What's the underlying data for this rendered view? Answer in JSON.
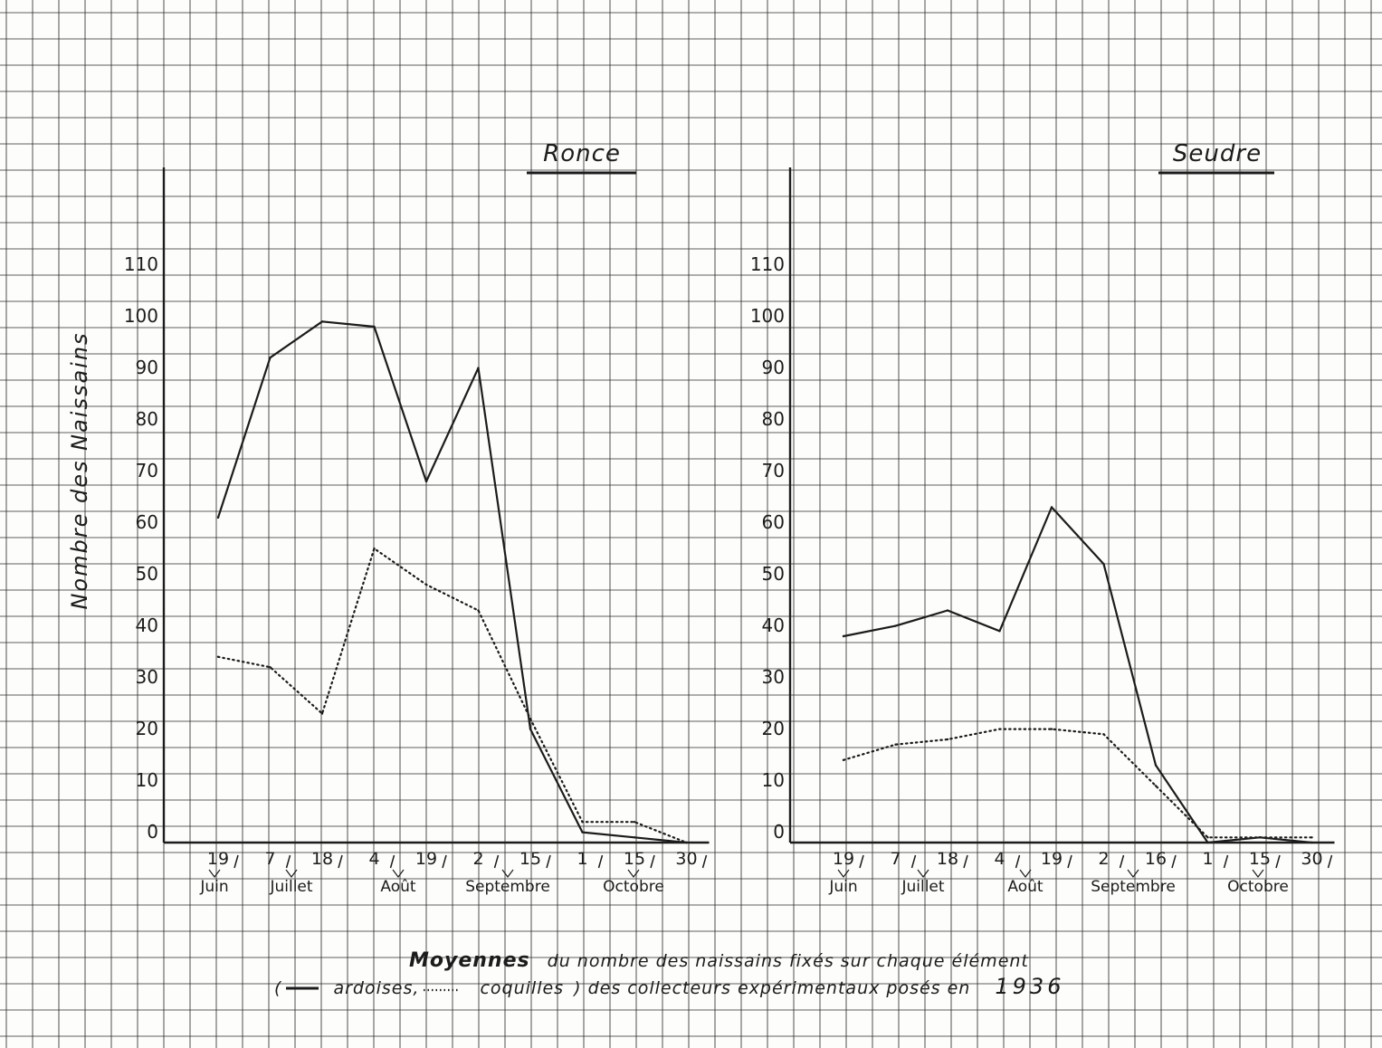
{
  "chart_data": [
    {
      "type": "line",
      "title": "Ronce",
      "ylabel": "Nombre des Naissains",
      "ylim": [
        0,
        110
      ],
      "yticks": [
        "0",
        "10",
        "20",
        "30",
        "40",
        "50",
        "60",
        "70",
        "80",
        "90",
        "100",
        "110"
      ],
      "x_labels": [
        "19",
        "7",
        "18",
        "4",
        "19",
        "2",
        "15",
        "1",
        "15",
        "30"
      ],
      "months": [
        "Juin",
        "Juillet",
        "Août",
        "Septembre",
        "Octobre"
      ],
      "series": [
        {
          "style": "solid",
          "values": [
            63,
            94,
            101,
            100,
            70,
            92,
            22,
            2,
            1,
            0
          ]
        },
        {
          "style": "dotted",
          "values": [
            36,
            34,
            25,
            57,
            50,
            45,
            24,
            4,
            4,
            0
          ]
        }
      ]
    },
    {
      "type": "line",
      "title": "Seudre",
      "ylim": [
        0,
        110
      ],
      "yticks": [
        "0",
        "10",
        "20",
        "30",
        "40",
        "50",
        "60",
        "70",
        "80",
        "90",
        "100",
        "110"
      ],
      "x_labels": [
        "19",
        "7",
        "18",
        "4",
        "19",
        "2",
        "16",
        "1",
        "15",
        "30"
      ],
      "months": [
        "Juin",
        "Juillet",
        "Août",
        "Septembre",
        "Octobre"
      ],
      "series": [
        {
          "style": "solid",
          "values": [
            40,
            42,
            45,
            41,
            65,
            54,
            15,
            0,
            1,
            0
          ]
        },
        {
          "style": "dotted",
          "values": [
            16,
            19,
            20,
            22,
            22,
            21,
            11,
            1,
            1,
            1
          ]
        }
      ]
    }
  ],
  "caption": {
    "line1_bold": "Moyennes",
    "line1_rest": "du nombre des naissains fixés sur chaque élément",
    "line2_open": "(",
    "line2_legend_solid": "ardoises,",
    "line2_legend_dotted": "coquilles",
    "line2_rest": ") des collecteurs expérimentaux posés en",
    "line2_year": "1936"
  },
  "colors": {
    "paper": "#fdfdfb",
    "grid": "#2a2a2a",
    "ink": "#1c1c1c"
  }
}
